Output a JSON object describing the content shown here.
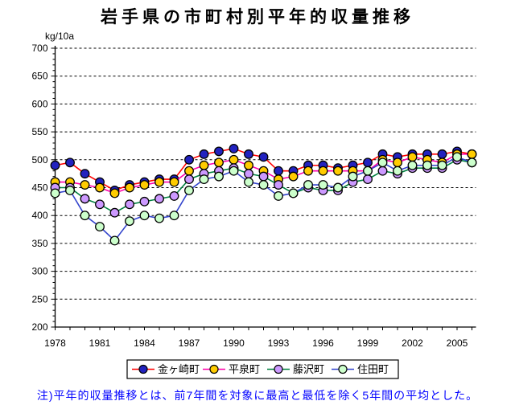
{
  "title": "岩手県の市町村別平年的収量推移",
  "y_axis_unit": "kg/10a",
  "note": "注)平年的収量推移とは、前7年間を対象に最高と最低を除く5年間の平均とした。",
  "chart_data": {
    "type": "line",
    "title": "岩手県の市町村別平年的収量推移",
    "ylabel": "kg/10a",
    "xlabel": "",
    "ylim": [
      200,
      700
    ],
    "y_tick_step": 50,
    "grid": "horizontal-dashed",
    "legend_position": "bottom",
    "x": [
      1978,
      1979,
      1980,
      1981,
      1982,
      1983,
      1984,
      1985,
      1986,
      1987,
      1988,
      1989,
      1990,
      1991,
      1992,
      1993,
      1994,
      1995,
      1996,
      1997,
      1998,
      1999,
      2000,
      2001,
      2002,
      2003,
      2004,
      2005,
      2006
    ],
    "x_tick_labels": [
      1978,
      1981,
      1984,
      1987,
      1990,
      1993,
      1996,
      1999,
      2002,
      2005
    ],
    "series": [
      {
        "name": "金ヶ崎町",
        "line_color": "#ff0000",
        "marker_color": "#2222bf",
        "values": [
          490,
          495,
          475,
          460,
          445,
          455,
          460,
          465,
          465,
          500,
          510,
          515,
          520,
          510,
          505,
          480,
          480,
          490,
          490,
          485,
          490,
          495,
          510,
          505,
          510,
          510,
          510,
          515,
          510
        ]
      },
      {
        "name": "平泉町",
        "line_color": "#ff00aa",
        "marker_color": "#ffcc00",
        "values": [
          460,
          460,
          455,
          450,
          440,
          450,
          455,
          460,
          460,
          480,
          490,
          495,
          500,
          490,
          480,
          465,
          470,
          480,
          480,
          480,
          480,
          480,
          500,
          495,
          505,
          500,
          495,
          510,
          510
        ]
      },
      {
        "name": "藤沢町",
        "line_color": "#008040",
        "marker_color": "#cc99ff",
        "values": [
          450,
          450,
          430,
          420,
          405,
          420,
          425,
          430,
          435,
          465,
          475,
          480,
          485,
          475,
          470,
          455,
          440,
          450,
          445,
          445,
          460,
          465,
          480,
          475,
          485,
          485,
          485,
          500,
          495
        ]
      },
      {
        "name": "住田町",
        "line_color": "#3344cc",
        "marker_color": "#ccffcc",
        "values": [
          440,
          445,
          400,
          380,
          355,
          390,
          400,
          395,
          400,
          445,
          465,
          470,
          480,
          460,
          455,
          435,
          440,
          455,
          455,
          450,
          470,
          480,
          495,
          480,
          490,
          490,
          490,
          505,
          495
        ]
      }
    ]
  }
}
